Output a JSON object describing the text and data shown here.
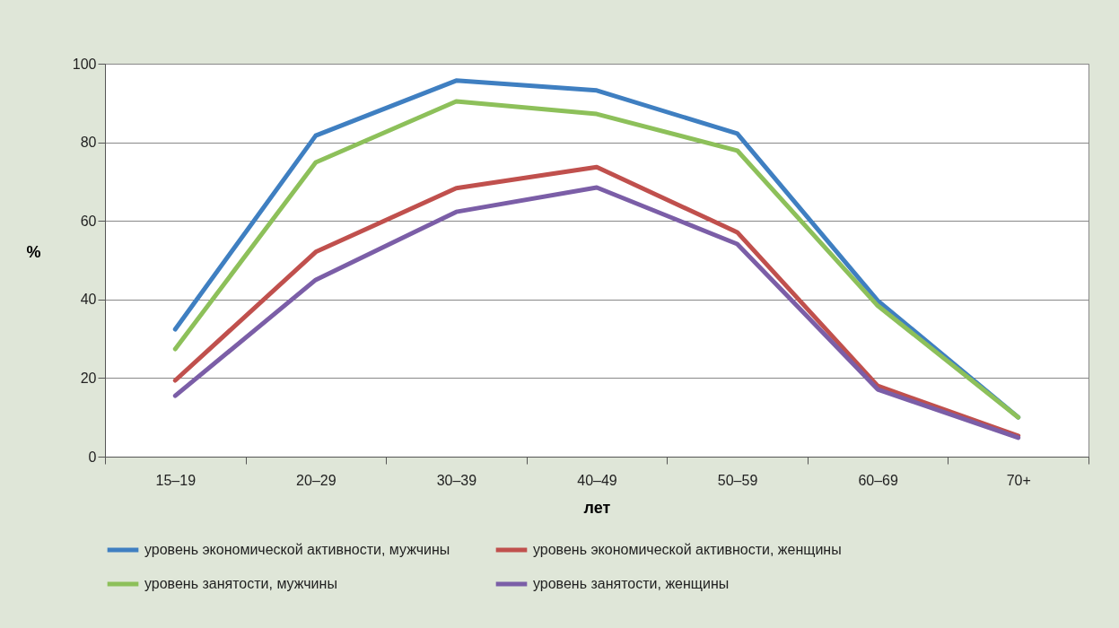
{
  "chart_data": {
    "type": "line",
    "xlabel": "лет",
    "ylabel": "%",
    "categories": [
      "15–19",
      "20–29",
      "30–39",
      "40–49",
      "50–59",
      "60–69",
      "70+"
    ],
    "series": [
      {
        "name": "уровень экономической активности, мужчины",
        "color": "#3f7fc1",
        "values": [
          32.4,
          81.7,
          95.7,
          93.2,
          82.2,
          39.7,
          10
        ]
      },
      {
        "name": "уровень экономической активности, женщины",
        "color": "#c0504d",
        "values": [
          19.4,
          52.1,
          68.3,
          73.7,
          57.1,
          18.0,
          5.3
        ]
      },
      {
        "name": "уровень занятости, мужчины",
        "color": "#8dc05a",
        "values": [
          27.4,
          74.9,
          90.4,
          87.2,
          77.9,
          38.4,
          10
        ]
      },
      {
        "name": "уровень занятости, женщины",
        "color": "#7b5ea7",
        "values": [
          15.5,
          45,
          62.3,
          68.5,
          54.1,
          17.1,
          4.8
        ]
      }
    ],
    "ylim": [
      0,
      100
    ],
    "yticks": [
      0,
      20,
      40,
      60,
      80,
      100
    ],
    "grid": "y",
    "legend": "bottom",
    "marker": "none",
    "line_style": "solid"
  }
}
